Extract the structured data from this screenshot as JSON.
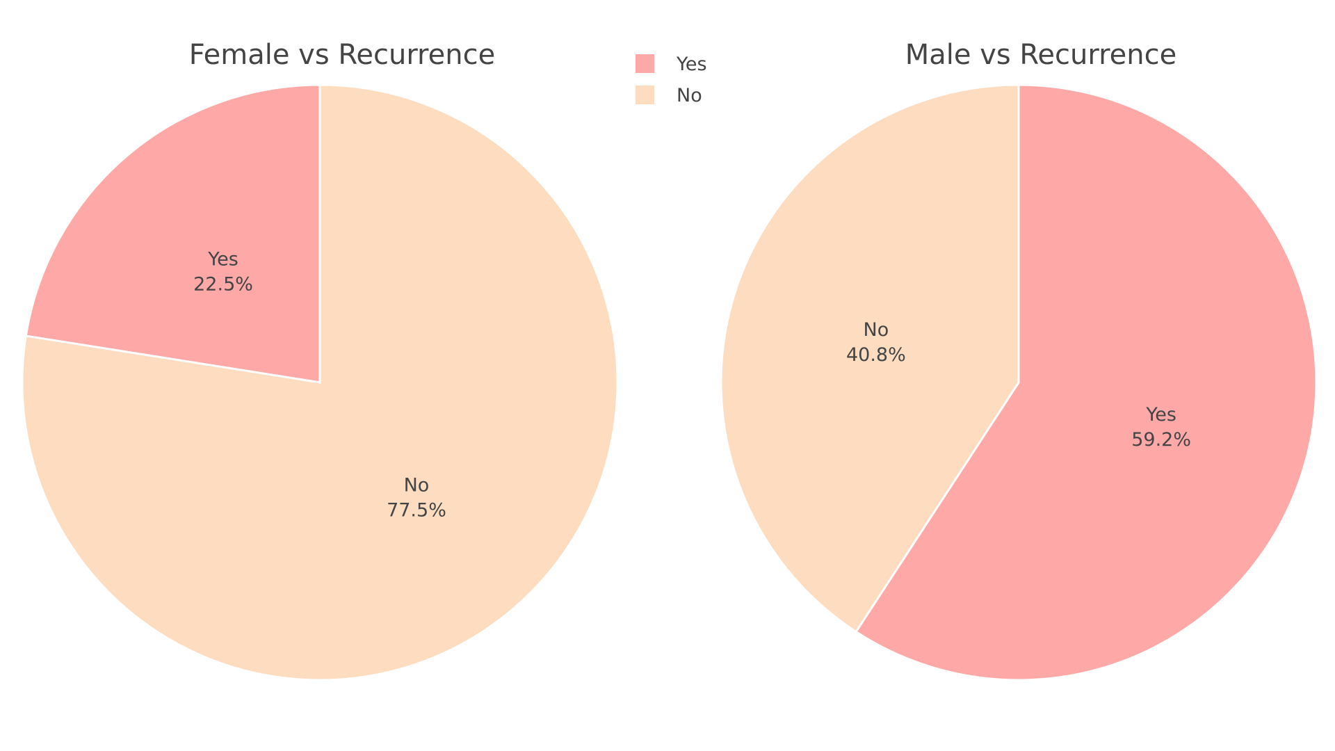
{
  "chart_data": [
    {
      "type": "pie",
      "title": "Female vs Recurrence",
      "labels": [
        "Yes",
        "No"
      ],
      "values": [
        22.5,
        77.5
      ],
      "value_texts": [
        "22.5%",
        "77.5%"
      ],
      "colors": [
        "#ffa8a8",
        "#fddcc0"
      ],
      "direction": "counterclockwise",
      "start": "12 o'clock"
    },
    {
      "type": "pie",
      "title": "Male vs Recurrence",
      "labels": [
        "Yes",
        "No"
      ],
      "values": [
        59.2,
        40.8
      ],
      "value_texts": [
        "59.2%",
        "40.8%"
      ],
      "colors": [
        "#ffa8a8",
        "#fddcc0"
      ],
      "direction": "clockwise",
      "start": "12 o'clock"
    }
  ],
  "legend": {
    "placement": "top-center",
    "items": [
      {
        "label": "Yes",
        "color": "#ffa8a8"
      },
      {
        "label": "No",
        "color": "#fddcc0"
      }
    ]
  }
}
